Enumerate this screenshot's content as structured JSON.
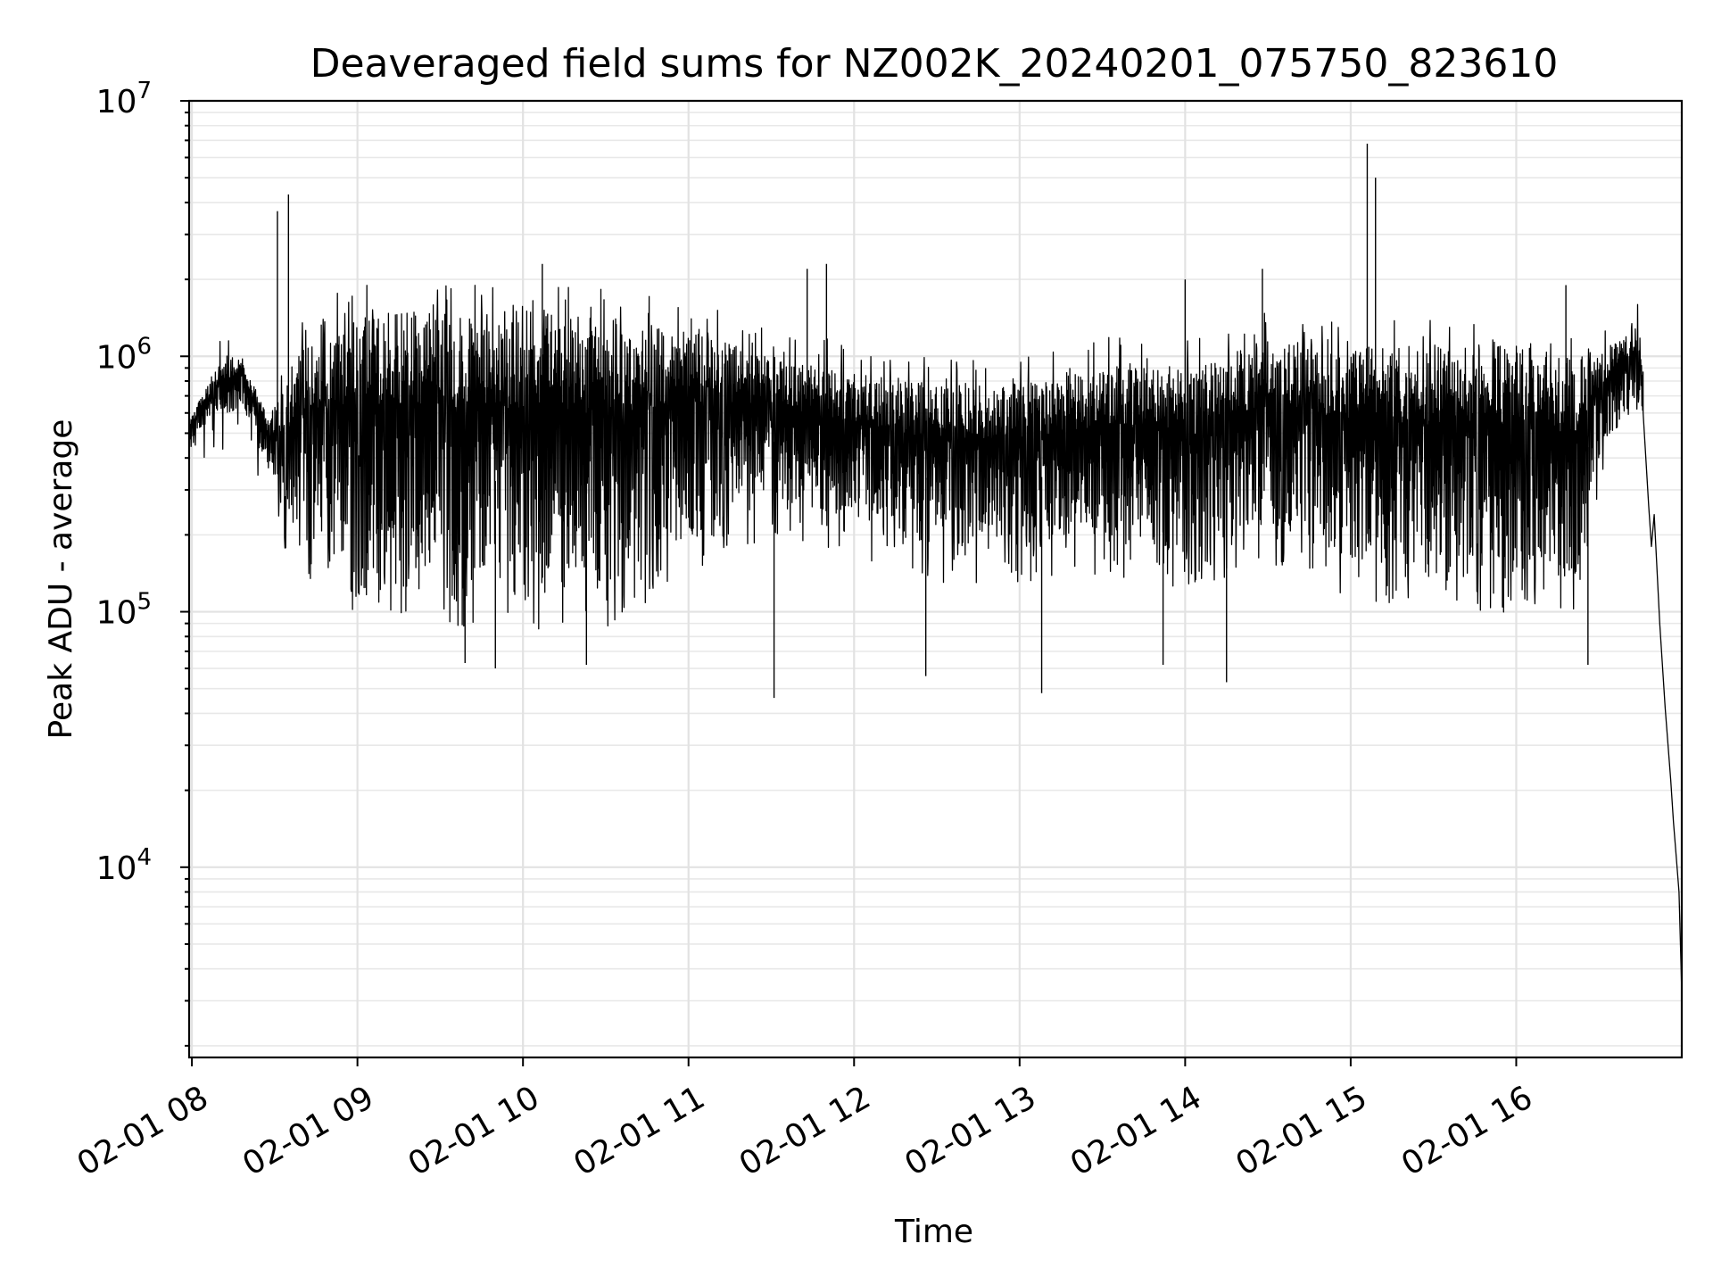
{
  "chart_data": {
    "type": "line",
    "title": "Deaveraged field sums for NZ002K_20240201_075750_823610",
    "xlabel": "Time",
    "ylabel": "Peak ADU - average",
    "yscale": "log",
    "ylim": [
      1800,
      10000000
    ],
    "xlim": [
      "2024-02-01 07:59",
      "2024-02-01 17:00"
    ],
    "grid": true,
    "line_color": "#000000",
    "x_ticks": [
      {
        "t": "2024-02-01 08:00",
        "label": "02-01 08"
      },
      {
        "t": "2024-02-01 09:00",
        "label": "02-01 09"
      },
      {
        "t": "2024-02-01 10:00",
        "label": "02-01 10"
      },
      {
        "t": "2024-02-01 11:00",
        "label": "02-01 11"
      },
      {
        "t": "2024-02-01 12:00",
        "label": "02-01 12"
      },
      {
        "t": "2024-02-01 13:00",
        "label": "02-01 13"
      },
      {
        "t": "2024-02-01 14:00",
        "label": "02-01 14"
      },
      {
        "t": "2024-02-01 15:00",
        "label": "02-01 15"
      },
      {
        "t": "2024-02-01 16:00",
        "label": "02-01 16"
      }
    ],
    "y_ticks": [
      {
        "value": 10000,
        "base": "10",
        "exp": "4"
      },
      {
        "value": 100000,
        "base": "10",
        "exp": "5"
      },
      {
        "value": 1000000,
        "base": "10",
        "exp": "6"
      },
      {
        "value": 10000000,
        "base": "10",
        "exp": "7"
      }
    ],
    "series": [
      {
        "envelope": [
          {
            "t": "2024-02-01 07:59",
            "low": 430000,
            "high": 560000
          },
          {
            "t": "2024-02-01 08:05",
            "low": 520000,
            "high": 750000
          },
          {
            "t": "2024-02-01 08:12",
            "low": 600000,
            "high": 950000
          },
          {
            "t": "2024-02-01 08:18",
            "low": 620000,
            "high": 1000000
          },
          {
            "t": "2024-02-01 08:22",
            "low": 520000,
            "high": 780000
          },
          {
            "t": "2024-02-01 08:28",
            "low": 330000,
            "high": 600000
          },
          {
            "t": "2024-02-01 08:33",
            "low": 250000,
            "high": 700000
          },
          {
            "t": "2024-02-01 08:40",
            "low": 200000,
            "high": 1100000
          },
          {
            "t": "2024-02-01 08:50",
            "low": 160000,
            "high": 1300000
          },
          {
            "t": "2024-02-01 09:00",
            "low": 140000,
            "high": 1450000
          },
          {
            "t": "2024-02-01 09:20",
            "low": 140000,
            "high": 1500000
          },
          {
            "t": "2024-02-01 09:40",
            "low": 120000,
            "high": 1450000
          },
          {
            "t": "2024-02-01 10:00",
            "low": 120000,
            "high": 1450000
          },
          {
            "t": "2024-02-01 10:30",
            "low": 120000,
            "high": 1400000
          },
          {
            "t": "2024-02-01 11:00",
            "low": 200000,
            "high": 1250000
          },
          {
            "t": "2024-02-01 11:30",
            "low": 280000,
            "high": 1000000
          },
          {
            "t": "2024-02-01 12:00",
            "low": 230000,
            "high": 850000
          },
          {
            "t": "2024-02-01 12:30",
            "low": 180000,
            "high": 800000
          },
          {
            "t": "2024-02-01 13:00",
            "low": 180000,
            "high": 800000
          },
          {
            "t": "2024-02-01 13:30",
            "low": 200000,
            "high": 900000
          },
          {
            "t": "2024-02-01 14:00",
            "low": 170000,
            "high": 900000
          },
          {
            "t": "2024-02-01 14:30",
            "low": 220000,
            "high": 1150000
          },
          {
            "t": "2024-02-01 15:00",
            "low": 160000,
            "high": 1100000
          },
          {
            "t": "2024-02-01 15:30",
            "low": 140000,
            "high": 1100000
          },
          {
            "t": "2024-02-01 16:00",
            "low": 140000,
            "high": 1100000
          },
          {
            "t": "2024-02-01 16:20",
            "low": 130000,
            "high": 1000000
          },
          {
            "t": "2024-02-01 16:30",
            "low": 400000,
            "high": 1000000
          },
          {
            "t": "2024-02-01 16:40",
            "low": 600000,
            "high": 1250000
          },
          {
            "t": "2024-02-01 16:44",
            "low": 700000,
            "high": 1350000
          },
          {
            "t": "2024-02-01 16:46",
            "low": 560000,
            "high": 900000
          }
        ],
        "tail": [
          {
            "t": "2024-02-01 16:46",
            "y": 600000
          },
          {
            "t": "2024-02-01 16:48",
            "y": 260000
          },
          {
            "t": "2024-02-01 16:49",
            "y": 180000
          },
          {
            "t": "2024-02-01 16:50",
            "y": 240000
          },
          {
            "t": "2024-02-01 16:52",
            "y": 90000
          },
          {
            "t": "2024-02-01 16:54",
            "y": 42000
          },
          {
            "t": "2024-02-01 16:56",
            "y": 22000
          },
          {
            "t": "2024-02-01 16:57",
            "y": 15000
          },
          {
            "t": "2024-02-01 16:58",
            "y": 11000
          },
          {
            "t": "2024-02-01 16:59",
            "y": 8000
          },
          {
            "t": "2024-02-01 17:00",
            "y": 3200
          }
        ],
        "spikes_high": [
          {
            "t": "2024-02-01 08:31",
            "y": 3700000
          },
          {
            "t": "2024-02-01 08:35",
            "y": 4300000
          },
          {
            "t": "2024-02-01 10:07",
            "y": 2300000
          },
          {
            "t": "2024-02-01 11:43",
            "y": 2200000
          },
          {
            "t": "2024-02-01 11:50",
            "y": 2300000
          },
          {
            "t": "2024-02-01 13:60",
            "y": 2000000
          },
          {
            "t": "2024-02-01 14:28",
            "y": 2200000
          },
          {
            "t": "2024-02-01 15:06",
            "y": 6800000
          },
          {
            "t": "2024-02-01 15:09",
            "y": 5000000
          },
          {
            "t": "2024-02-01 16:18",
            "y": 1900000
          }
        ],
        "spikes_low": [
          {
            "t": "2024-02-01 09:39",
            "y": 63000
          },
          {
            "t": "2024-02-01 09:50",
            "y": 60000
          },
          {
            "t": "2024-02-01 10:23",
            "y": 62000
          },
          {
            "t": "2024-02-01 11:31",
            "y": 46000
          },
          {
            "t": "2024-02-01 12:26",
            "y": 56000
          },
          {
            "t": "2024-02-01 13:08",
            "y": 48000
          },
          {
            "t": "2024-02-01 13:52",
            "y": 62000
          },
          {
            "t": "2024-02-01 14:15",
            "y": 53000
          },
          {
            "t": "2024-02-01 16:26",
            "y": 62000
          }
        ]
      }
    ]
  }
}
